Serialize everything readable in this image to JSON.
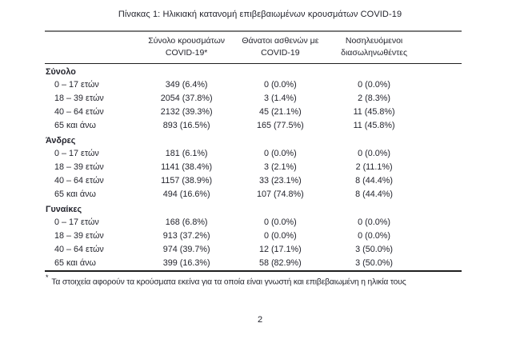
{
  "page": {
    "title": "Πίνακας 1: Ηλικιακή κατανομή επιβεβαιωμένων κρουσμάτων COVID-19",
    "page_number": "2"
  },
  "table": {
    "col_headers": [
      {
        "line1": "Σύνολο κρουσμάτων",
        "line2": "COVID-19*"
      },
      {
        "line1": "Θάνατοι ασθενών με",
        "line2": "COVID-19"
      },
      {
        "line1": "Νοσηλευόμενοι",
        "line2": "διασωληνωθέντες"
      }
    ],
    "sections": [
      {
        "label": "Σύνολο",
        "rows": [
          {
            "age": "0 – 17 ετών",
            "cases": "349 (6.4%)",
            "deaths": "0 (0.0%)",
            "intubated": "0 (0.0%)"
          },
          {
            "age": "18 – 39 ετών",
            "cases": "2054 (37.8%)",
            "deaths": "3 (1.4%)",
            "intubated": "2 (8.3%)"
          },
          {
            "age": "40 – 64 ετών",
            "cases": "2132 (39.3%)",
            "deaths": "45 (21.1%)",
            "intubated": "11 (45.8%)"
          },
          {
            "age": "65 και άνω",
            "cases": "893 (16.5%)",
            "deaths": "165 (77.5%)",
            "intubated": "11 (45.8%)"
          }
        ]
      },
      {
        "label": "Άνδρες",
        "rows": [
          {
            "age": "0 – 17 ετών",
            "cases": "181 (6.1%)",
            "deaths": "0 (0.0%)",
            "intubated": "0 (0.0%)"
          },
          {
            "age": "18 – 39 ετών",
            "cases": "1141 (38.4%)",
            "deaths": "3 (2.1%)",
            "intubated": "2 (11.1%)"
          },
          {
            "age": "40 – 64 ετών",
            "cases": "1157 (38.9%)",
            "deaths": "33 (23.1%)",
            "intubated": "8 (44.4%)"
          },
          {
            "age": "65 και άνω",
            "cases": "494 (16.6%)",
            "deaths": "107 (74.8%)",
            "intubated": "8 (44.4%)"
          }
        ]
      },
      {
        "label": "Γυναίκες",
        "rows": [
          {
            "age": "0 – 17 ετών",
            "cases": "168 (6.8%)",
            "deaths": "0 (0.0%)",
            "intubated": "0 (0.0%)"
          },
          {
            "age": "18 – 39 ετών",
            "cases": "913 (37.2%)",
            "deaths": "0 (0.0%)",
            "intubated": "0 (0.0%)"
          },
          {
            "age": "40 – 64 ετών",
            "cases": "974 (39.7%)",
            "deaths": "12 (17.1%)",
            "intubated": "3 (50.0%)"
          },
          {
            "age": "65 και άνω",
            "cases": "399 (16.3%)",
            "deaths": "58 (82.9%)",
            "intubated": "3 (50.0%)"
          }
        ]
      }
    ],
    "footnote_marker": "*",
    "footnote": "Τα στοιχεία αφορούν τα κρούσματα εκείνα για τα οποία είναι γνωστή και επιβεβαιωμένη η ηλικία τους"
  }
}
